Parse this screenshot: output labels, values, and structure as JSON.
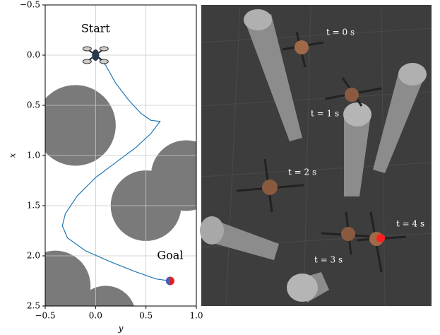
{
  "chart_data": {
    "type": "line",
    "xlabel": "y",
    "ylabel": "x",
    "xlim": [
      -0.5,
      1.0
    ],
    "ylim": [
      -0.5,
      2.5
    ],
    "y_inverted": true,
    "grid": true,
    "xticks": [
      {
        "value": -0.5,
        "label": "−0.5"
      },
      {
        "value": 0,
        "label": "0.0"
      },
      {
        "value": 0.5,
        "label": "0.5"
      },
      {
        "value": 1.0,
        "label": "1.0"
      }
    ],
    "yticks": [
      {
        "value": -0.5,
        "label": "−0.5"
      },
      {
        "value": 0,
        "label": "0.0"
      },
      {
        "value": 0.5,
        "label": "0.5"
      },
      {
        "value": 1.0,
        "label": "1.0"
      },
      {
        "value": 1.5,
        "label": "1.5"
      },
      {
        "value": 2.0,
        "label": "2.0"
      },
      {
        "value": 2.5,
        "label": "2.5"
      }
    ],
    "obstacles": [
      {
        "center": [
          -0.2,
          0.7
        ],
        "radius": 0.4
      },
      {
        "center": [
          0.9,
          1.2
        ],
        "radius": 0.35
      },
      {
        "center": [
          0.5,
          1.5
        ],
        "radius": 0.35
      },
      {
        "center": [
          -0.4,
          2.3
        ],
        "radius": 0.35
      },
      {
        "center": [
          0.1,
          2.6
        ],
        "radius": 0.3
      }
    ],
    "obstacle_color": "#7a7a7a",
    "series": [
      {
        "color": "#1f77b4",
        "x": [
          0,
          0.1,
          0.2,
          0.33,
          0.45,
          0.55,
          0.64,
          0.55,
          0.4,
          0.2,
          0,
          -0.18,
          -0.3,
          -0.33,
          -0.28,
          -0.1,
          0.15,
          0.4,
          0.6,
          0.74
        ],
        "values": [
          0,
          0.1,
          0.28,
          0.45,
          0.58,
          0.65,
          0.66,
          0.78,
          0.92,
          1.07,
          1.22,
          1.4,
          1.58,
          1.7,
          1.82,
          1.95,
          2.06,
          2.16,
          2.23,
          2.25
        ]
      }
    ],
    "annotations": [
      {
        "text": "Start",
        "x": 0,
        "y": -0.26
      },
      {
        "text": "Goal",
        "x": 0.74,
        "y": 2.0
      }
    ]
  },
  "render": {
    "labels": [
      "t = 0 s",
      "t = 1 s",
      "t = 2 s",
      "t = 3 s",
      "t = 4 s"
    ]
  }
}
